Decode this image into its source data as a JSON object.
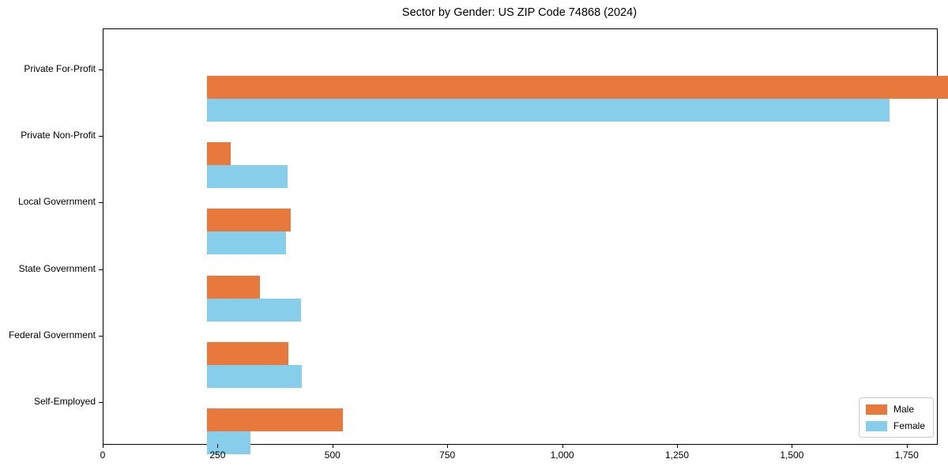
{
  "chart_data": {
    "type": "bar",
    "orientation": "horizontal",
    "title": "Sector by Gender: US ZIP Code 74868 (2024)",
    "categories": [
      "Private For-Profit",
      "Private Non-Profit",
      "Local Government",
      "State Government",
      "Federal Government",
      "Self-Employed"
    ],
    "series": [
      {
        "name": "Male",
        "color": "#e8793d",
        "values": [
          1727,
          52,
          183,
          115,
          177,
          295
        ]
      },
      {
        "name": "Female",
        "color": "#87ceeb",
        "values": [
          1486,
          176,
          172,
          205,
          206,
          95
        ]
      }
    ],
    "xlabel": "",
    "ylabel": "",
    "xlim": [
      0,
      1814
    ],
    "xticks": [
      0,
      250,
      500,
      750,
      1000,
      1250,
      1500,
      1750
    ],
    "xtick_labels": [
      "0",
      "250",
      "500",
      "750",
      "1,000",
      "1,250",
      "1,500",
      "1,750"
    ],
    "grid": false,
    "legend": {
      "position": "lower right",
      "entries": [
        "Male",
        "Female"
      ]
    },
    "colors": {
      "axis": "#000000",
      "background": "#ffffff"
    }
  }
}
